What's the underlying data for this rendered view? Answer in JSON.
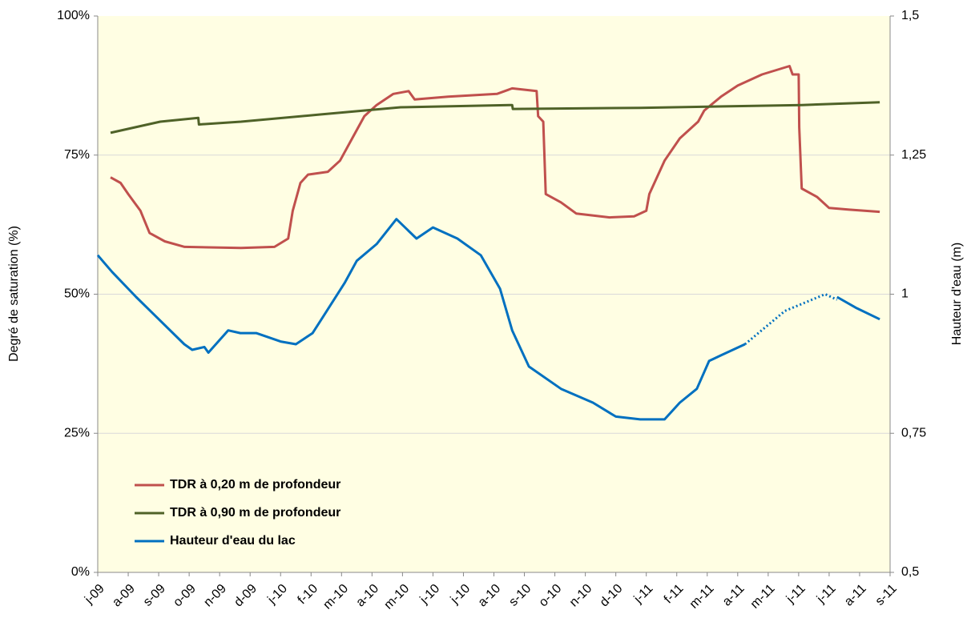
{
  "chart_data": {
    "type": "line",
    "y_label": "Degré de saturation  (%)",
    "y2_label": "Hauteur d'eau (m)",
    "xlim": [
      0,
      26
    ],
    "xticks": [
      {
        "value": 0,
        "label": "j-09"
      },
      {
        "value": 1,
        "label": "a-09"
      },
      {
        "value": 2,
        "label": "s-09"
      },
      {
        "value": 3,
        "label": "o-09"
      },
      {
        "value": 4,
        "label": "n-09"
      },
      {
        "value": 5,
        "label": "d-09"
      },
      {
        "value": 6,
        "label": "j-10"
      },
      {
        "value": 7,
        "label": "f-10"
      },
      {
        "value": 8,
        "label": "m-10"
      },
      {
        "value": 9,
        "label": "a-10"
      },
      {
        "value": 10,
        "label": "m-10"
      },
      {
        "value": 11,
        "label": "j-10"
      },
      {
        "value": 12,
        "label": "j-10"
      },
      {
        "value": 13,
        "label": "a-10"
      },
      {
        "value": 14,
        "label": "s-10"
      },
      {
        "value": 15,
        "label": "o-10"
      },
      {
        "value": 16,
        "label": "n-10"
      },
      {
        "value": 17,
        "label": "d-10"
      },
      {
        "value": 18,
        "label": "j-11"
      },
      {
        "value": 19,
        "label": "f-11"
      },
      {
        "value": 20,
        "label": "m-11"
      },
      {
        "value": 21,
        "label": "a-11"
      },
      {
        "value": 22,
        "label": "m-11"
      },
      {
        "value": 23,
        "label": "j-11"
      },
      {
        "value": 24,
        "label": "j-11"
      },
      {
        "value": 25,
        "label": "a-11"
      },
      {
        "value": 26,
        "label": "s-11"
      }
    ],
    "ylim": [
      0,
      100
    ],
    "yticks": [
      {
        "value": 0,
        "label": "0%"
      },
      {
        "value": 25,
        "label": "25%"
      },
      {
        "value": 50,
        "label": "50%"
      },
      {
        "value": 75,
        "label": "75%"
      },
      {
        "value": 100,
        "label": "100%"
      }
    ],
    "y2lim": [
      0.5,
      1.5
    ],
    "y2ticks": [
      {
        "value": 0.5,
        "label": "0,5"
      },
      {
        "value": 0.75,
        "label": "0,75"
      },
      1,
      {
        "value": 1.25,
        "label": "1,25"
      },
      {
        "value": 1.5,
        "label": "1,5"
      }
    ],
    "grid": true,
    "legend": "bottom-left",
    "background": "#fffee3",
    "series": [
      {
        "name": "TDR à 0,20 m de profondeur",
        "color": "#c0504d",
        "x": [
          0.42,
          0.75,
          1.0,
          1.4,
          1.7,
          2.2,
          2.85,
          4.7,
          5.8,
          6.25,
          6.4,
          6.65,
          6.9,
          7.55,
          7.95,
          8.35,
          8.75,
          9.15,
          9.7,
          10.2,
          10.4,
          11.5,
          13.1,
          13.6,
          14.4,
          14.45,
          14.62,
          14.7,
          15.2,
          15.7,
          16.8,
          17.6,
          18.0,
          18.1,
          18.6,
          19.1,
          19.7,
          19.9,
          20.45,
          21.0,
          21.8,
          22.7,
          22.8,
          23.0,
          23.02,
          23.1,
          23.6,
          24.0,
          24.66,
          25.66
        ],
        "values": [
          71,
          70,
          68,
          65,
          61,
          59.5,
          58.5,
          58.3,
          58.5,
          60,
          65,
          70,
          71.5,
          72,
          74,
          78,
          82,
          84,
          86,
          86.5,
          85,
          85.5,
          86,
          87,
          86.5,
          82,
          81,
          68,
          66.5,
          64.5,
          63.8,
          64,
          65,
          68,
          74,
          78,
          81,
          83,
          85.5,
          87.5,
          89.5,
          91,
          89.5,
          89.5,
          80,
          69,
          67.5,
          65.5,
          65.2,
          64.8
        ]
      },
      {
        "name": "TDR à 0,90 m de profondeur",
        "color": "#4f6228",
        "x": [
          0.42,
          2.05,
          3.3,
          3.32,
          4.7,
          7.3,
          9.94,
          13.6,
          13.62,
          17.8,
          23.1,
          25.66
        ],
        "values": [
          79,
          81,
          81.7,
          80.5,
          81,
          82.3,
          83.6,
          84,
          83.3,
          83.5,
          84,
          84.5
        ]
      },
      {
        "name": "Hauteur d'eau du lac",
        "color": "#0070c0",
        "axis": "y2",
        "x": [
          0,
          0.47,
          1.26,
          2.84,
          3.1,
          3.5,
          3.63,
          4.28,
          4.68,
          5.2,
          6.0,
          6.5,
          7.05,
          7.4,
          8.1,
          8.5,
          9.15,
          9.8,
          10.46,
          11.0,
          11.8,
          12.57,
          13.2,
          13.6,
          14.15,
          15.2,
          16.25,
          17.0,
          17.8,
          18.6,
          19.1,
          19.66,
          20.06,
          20.45,
          21.24,
          null,
          24.26,
          24.9,
          25.66
        ],
        "values": [
          1.07,
          1.04,
          0.995,
          0.91,
          0.9,
          0.905,
          0.895,
          0.935,
          0.93,
          0.93,
          0.915,
          0.91,
          0.93,
          0.96,
          1.02,
          1.06,
          1.09,
          1.135,
          1.1,
          1.12,
          1.1,
          1.07,
          1.01,
          0.935,
          0.87,
          0.83,
          0.805,
          0.78,
          0.775,
          0.775,
          0.805,
          0.83,
          0.88,
          0.89,
          0.91,
          null,
          0.995,
          0.975,
          0.955
        ],
        "estimated": {
          "x": [
            21.24,
            22.55,
            23.87,
            24.26
          ],
          "values": [
            0.91,
            0.97,
            1.0,
            0.99
          ]
        }
      }
    ]
  }
}
